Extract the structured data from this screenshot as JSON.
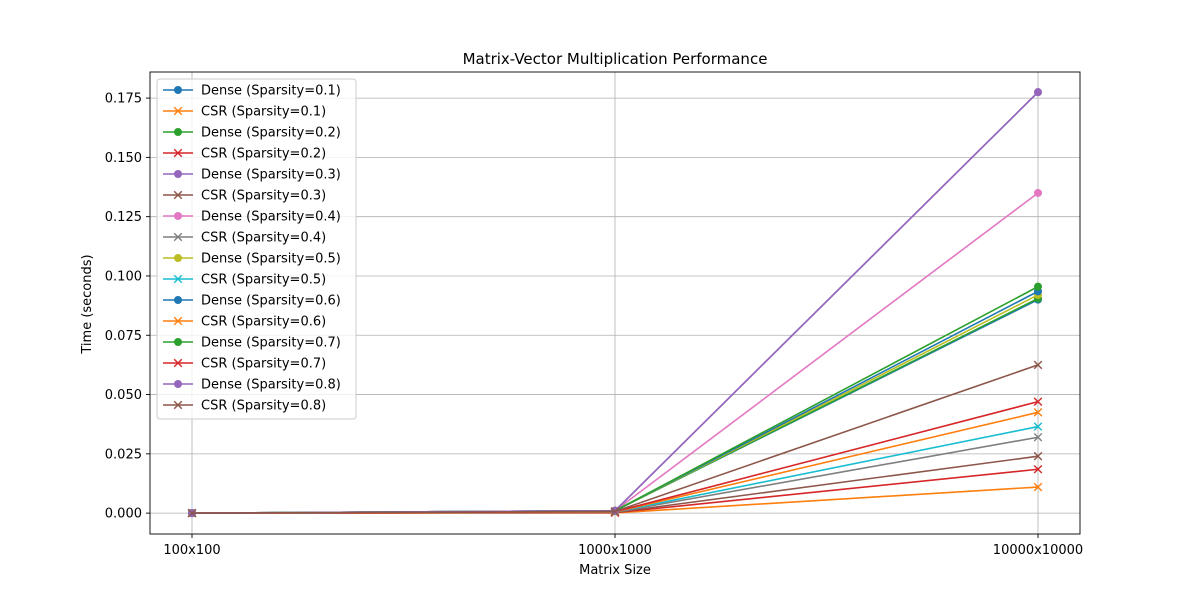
{
  "chart_data": {
    "type": "line",
    "title": "Matrix-Vector Multiplication Performance",
    "xlabel": "Matrix Size",
    "ylabel": "Time (seconds)",
    "categories": [
      "100x100",
      "1000x1000",
      "10000x10000"
    ],
    "ylim": [
      -0.0088,
      0.186
    ],
    "yticks": [
      "0.000",
      "0.025",
      "0.050",
      "0.075",
      "0.100",
      "0.125",
      "0.150",
      "0.175"
    ],
    "ytick_values": [
      0.0,
      0.025,
      0.05,
      0.075,
      0.1,
      0.125,
      0.15,
      0.175
    ],
    "grid": true,
    "legend_position": "upper-left",
    "series": [
      {
        "name": "Dense (Sparsity=0.1)",
        "marker": "circle",
        "color": "#1f77b4",
        "values": [
          0.0,
          0.001,
          0.09
        ]
      },
      {
        "name": "CSR (Sparsity=0.1)",
        "marker": "x",
        "color": "#ff7f0e",
        "values": [
          0.0,
          0.0001,
          0.011
        ]
      },
      {
        "name": "Dense (Sparsity=0.2)",
        "marker": "circle",
        "color": "#2ca02c",
        "values": [
          0.0,
          0.001,
          0.0905
        ]
      },
      {
        "name": "CSR (Sparsity=0.2)",
        "marker": "x",
        "color": "#d62728",
        "values": [
          0.0,
          0.0002,
          0.0185
        ]
      },
      {
        "name": "Dense (Sparsity=0.3)",
        "marker": "circle",
        "color": "#9467bd",
        "values": [
          0.0,
          0.001,
          0.1775
        ]
      },
      {
        "name": "CSR (Sparsity=0.3)",
        "marker": "x",
        "color": "#8c564b",
        "values": [
          0.0,
          0.0003,
          0.024
        ]
      },
      {
        "name": "Dense (Sparsity=0.4)",
        "marker": "circle",
        "color": "#e377c2",
        "values": [
          0.0,
          0.001,
          0.135
        ]
      },
      {
        "name": "CSR (Sparsity=0.4)",
        "marker": "x",
        "color": "#7f7f7f",
        "values": [
          0.0,
          0.0004,
          0.032
        ]
      },
      {
        "name": "Dense (Sparsity=0.5)",
        "marker": "circle",
        "color": "#bcbd22",
        "values": [
          0.0,
          0.001,
          0.092
        ]
      },
      {
        "name": "CSR (Sparsity=0.5)",
        "marker": "x",
        "color": "#17becf",
        "values": [
          0.0,
          0.0005,
          0.0365
        ]
      },
      {
        "name": "Dense (Sparsity=0.6)",
        "marker": "circle",
        "color": "#1f77b4",
        "values": [
          0.0,
          0.001,
          0.0935
        ]
      },
      {
        "name": "CSR (Sparsity=0.6)",
        "marker": "x",
        "color": "#ff7f0e",
        "values": [
          0.0,
          0.0005,
          0.0425
        ]
      },
      {
        "name": "Dense (Sparsity=0.7)",
        "marker": "circle",
        "color": "#2ca02c",
        "values": [
          0.0,
          0.001,
          0.0955
        ]
      },
      {
        "name": "CSR (Sparsity=0.7)",
        "marker": "x",
        "color": "#d62728",
        "values": [
          0.0,
          0.0006,
          0.047
        ]
      },
      {
        "name": "Dense (Sparsity=0.8)",
        "marker": "circle",
        "color": "#9467bd",
        "values": [
          0.0,
          0.001,
          0.1775
        ]
      },
      {
        "name": "CSR (Sparsity=0.8)",
        "marker": "x",
        "color": "#8c564b",
        "values": [
          0.0,
          0.0007,
          0.0625
        ]
      }
    ]
  }
}
